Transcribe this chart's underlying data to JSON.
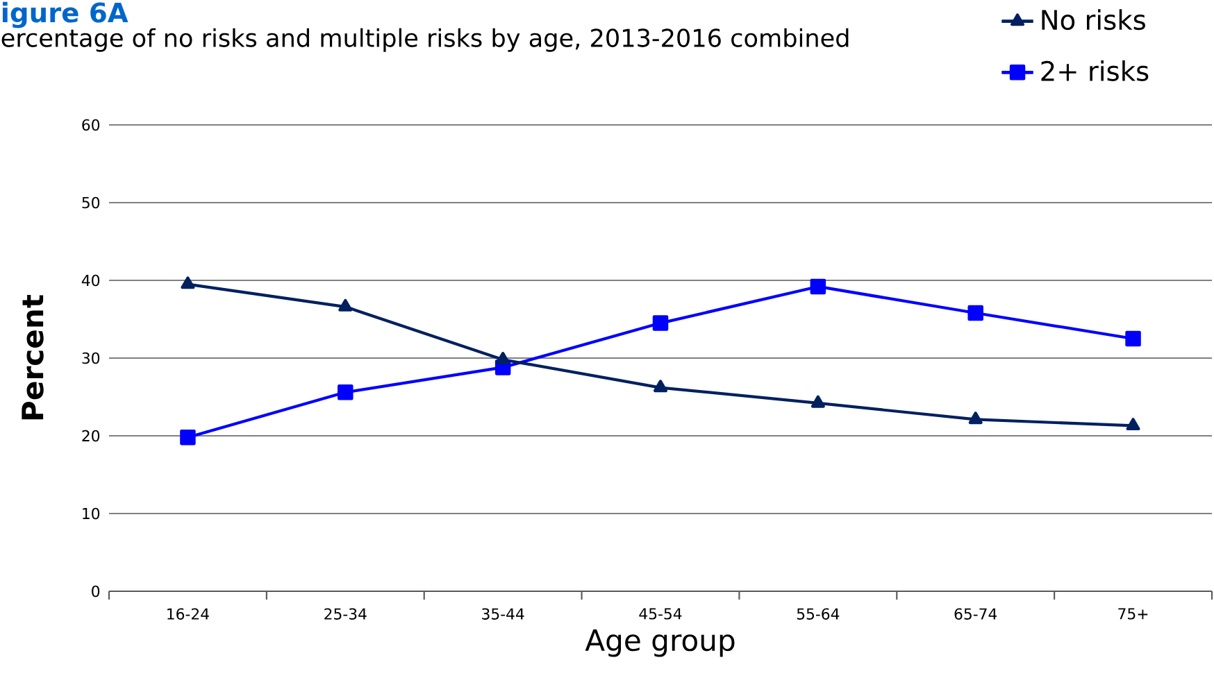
{
  "chart_data": {
    "type": "line",
    "title": "igure 6A",
    "subtitle": "ercentage of no risks and multiple risks by age, 2013-2016 combined",
    "xlabel": "Age group",
    "ylabel": "Percent",
    "categories": [
      "16-24",
      "25-34",
      "35-44",
      "45-54",
      "55-64",
      "65-74",
      "75+"
    ],
    "series": [
      {
        "name": "No risks",
        "color": "#002060",
        "marker": "triangle",
        "values": [
          39.5,
          36.6,
          29.8,
          26.2,
          24.2,
          22.1,
          21.3
        ]
      },
      {
        "name": "2+ risks",
        "color": "#0000ff",
        "marker": "square",
        "values": [
          19.8,
          25.6,
          28.8,
          34.5,
          39.2,
          35.8,
          32.5
        ]
      }
    ],
    "ylim": [
      0,
      60
    ],
    "yticks": [
      0,
      10,
      20,
      30,
      40,
      50,
      60
    ],
    "grid": "y",
    "legend": "top right",
    "line_style": "solid"
  }
}
